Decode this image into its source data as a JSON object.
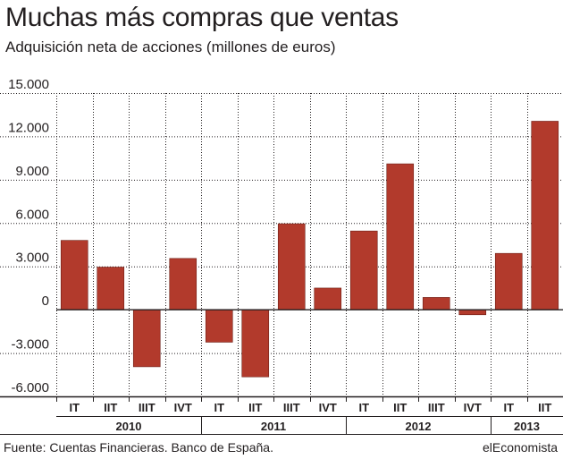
{
  "chart_data": {
    "type": "bar",
    "title": "Muchas más compras que ventas",
    "subtitle": "Adquisición neta de acciones (millones de euros)",
    "categories": [
      "IT",
      "IIT",
      "IIIT",
      "IVT",
      "IT",
      "IIT",
      "IIIT",
      "IVT",
      "IT",
      "IIT",
      "IIIT",
      "IVT",
      "IT",
      "IIT"
    ],
    "years": [
      {
        "label": "2010",
        "count": 4
      },
      {
        "label": "2011",
        "count": 4
      },
      {
        "label": "2012",
        "count": 4
      },
      {
        "label": "2013",
        "count": 2
      }
    ],
    "values": [
      4800,
      2950,
      -3950,
      3550,
      -2250,
      -4650,
      5950,
      1500,
      5450,
      10100,
      850,
      -350,
      3900,
      13050
    ],
    "ylim": [
      -6000,
      15000
    ],
    "yticks": [
      15000,
      12000,
      9000,
      6000,
      3000,
      0,
      -3000,
      -6000
    ],
    "ytick_labels": [
      "15.000",
      "12.000",
      "9.000",
      "6.000",
      "3.000",
      "0",
      "-3.000",
      "-6.000"
    ],
    "grid": true,
    "bar_color": "#b23a2c",
    "xlabel": "",
    "ylabel": ""
  },
  "footer": {
    "source": "Fuente: Cuentas Financieras. Banco de España.",
    "brand": "elEconomista"
  }
}
